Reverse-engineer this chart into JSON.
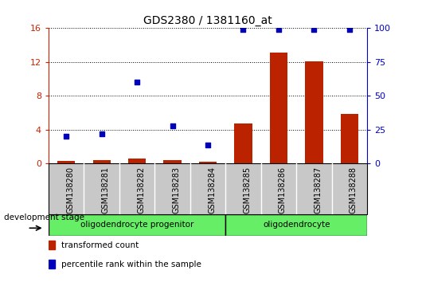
{
  "title": "GDS2380 / 1381160_at",
  "samples": [
    "GSM138280",
    "GSM138281",
    "GSM138282",
    "GSM138283",
    "GSM138284",
    "GSM138285",
    "GSM138286",
    "GSM138287",
    "GSM138288"
  ],
  "transformed_count": [
    0.3,
    0.4,
    0.6,
    0.4,
    0.2,
    4.7,
    13.1,
    12.1,
    5.9
  ],
  "percentile_rank": [
    20,
    22,
    60,
    28,
    14,
    99,
    99,
    99,
    99
  ],
  "ylim_left": [
    0,
    16
  ],
  "ylim_right": [
    0,
    100
  ],
  "yticks_left": [
    0,
    4,
    8,
    12,
    16
  ],
  "yticks_right": [
    0,
    25,
    50,
    75,
    100
  ],
  "group1_label": "oligodendrocyte progenitor",
  "group1_count": 5,
  "group2_label": "oligodendrocyte",
  "group2_count": 4,
  "bar_color": "#BB2200",
  "dot_color": "#0000BB",
  "title_fontsize": 10,
  "axis_color_left": "#CC2200",
  "axis_color_right": "#0000CC",
  "group_box_color": "#66EE66",
  "development_stage_label": "development stage",
  "legend_items": [
    {
      "label": "transformed count",
      "color": "#BB2200"
    },
    {
      "label": "percentile rank within the sample",
      "color": "#0000BB"
    }
  ],
  "xticklabel_bg": "#C8C8C8"
}
